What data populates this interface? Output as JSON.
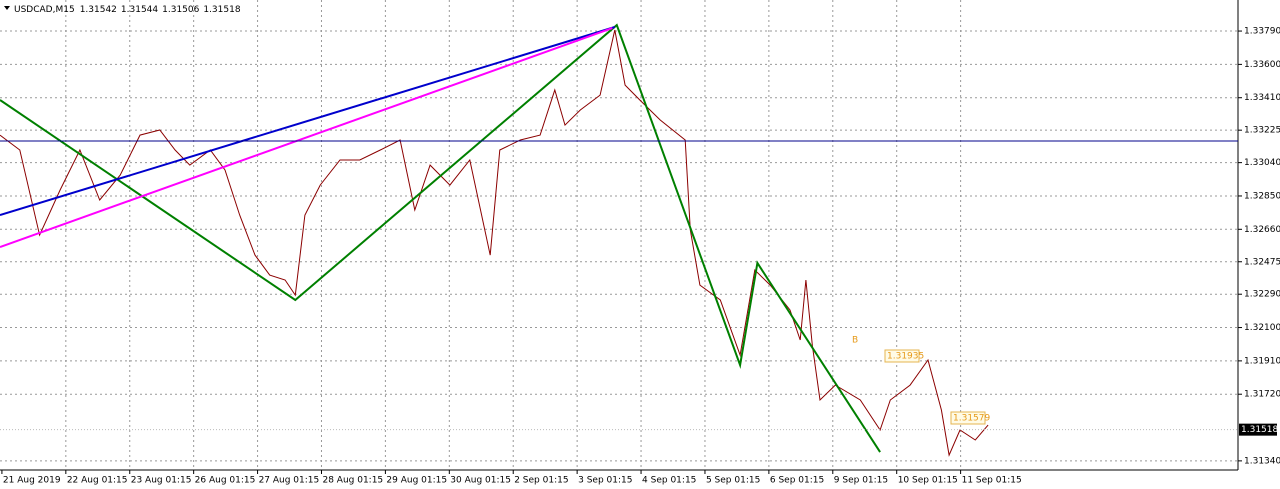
{
  "chart_data": {
    "type": "line",
    "title": "USDCAD,M15",
    "ohlc": [
      1.31542,
      1.31544,
      1.31506,
      1.31518
    ],
    "xlim": [
      -0.03,
      19.34
    ],
    "xticks": [
      {
        "value": 0,
        "label": "21 Aug 2019"
      },
      {
        "value": 1,
        "label": "22 Aug 01:15"
      },
      {
        "value": 2,
        "label": "23 Aug 01:15"
      },
      {
        "value": 3,
        "label": "26 Aug 01:15"
      },
      {
        "value": 4,
        "label": "27 Aug 01:15"
      },
      {
        "value": 5,
        "label": "28 Aug 01:15"
      },
      {
        "value": 6,
        "label": "29 Aug 01:15"
      },
      {
        "value": 7,
        "label": "30 Aug 01:15"
      },
      {
        "value": 8,
        "label": "2 Sep 01:15"
      },
      {
        "value": 9,
        "label": "3 Sep 01:15"
      },
      {
        "value": 10,
        "label": "4 Sep 01:15"
      },
      {
        "value": 11,
        "label": "5 Sep 01:15"
      },
      {
        "value": 12,
        "label": "6 Sep 01:15"
      },
      {
        "value": 13,
        "label": "9 Sep 01:15"
      },
      {
        "value": 14,
        "label": "10 Sep 01:15"
      },
      {
        "value": 15,
        "label": "11 Sep 01:15"
      }
    ],
    "ylim": [
      1.31288,
      1.33967
    ],
    "yticks": [
      {
        "value": 1.3379,
        "label": "1.33790"
      },
      {
        "value": 1.336,
        "label": "1.33600"
      },
      {
        "value": 1.3341,
        "label": "1.33410"
      },
      1.33225,
      {
        "value": 1.3304,
        "label": "1.33040"
      },
      {
        "value": 1.3285,
        "label": "1.32850"
      },
      {
        "value": 1.3266,
        "label": "1.32660"
      },
      1.32475,
      {
        "value": 1.3229,
        "label": "1.32290"
      },
      {
        "value": 1.321,
        "label": "1.32100"
      },
      {
        "value": 1.3191,
        "label": "1.31910"
      },
      {
        "value": 1.3172,
        "label": "1.31720"
      },
      {
        "value": 1.3134,
        "label": "1.31340"
      }
    ],
    "grid": true,
    "series": [
      {
        "color": "#8b0000",
        "x": [
          -0.03,
          0.28,
          0.59,
          0.91,
          1.22,
          1.53,
          1.85,
          2.16,
          2.47,
          2.71,
          2.94,
          3.26,
          3.49,
          3.72,
          3.96,
          4.19,
          4.43,
          4.59,
          4.74,
          4.98,
          5.29,
          5.6,
          5.92,
          6.23,
          6.46,
          6.7,
          7.01,
          7.32,
          7.64,
          7.79,
          8.11,
          8.42,
          8.65,
          8.81,
          9.05,
          9.36,
          9.59,
          9.75,
          9.98,
          10.3,
          10.69,
          10.77,
          10.92,
          11.24,
          11.55,
          11.78,
          12.02,
          12.33,
          12.49,
          12.58,
          12.68,
          12.8,
          13.04,
          13.43,
          13.74,
          13.9,
          14.21,
          14.49,
          14.7,
          14.82,
          14.99,
          15.23,
          15.43
        ],
        "values": [
          1.33197,
          1.33112,
          1.32627,
          1.32884,
          1.33112,
          1.32827,
          1.32969,
          1.33197,
          1.33226,
          1.33112,
          1.33026,
          1.33112,
          1.32998,
          1.32741,
          1.32513,
          1.32399,
          1.32371,
          1.32285,
          1.32741,
          1.32912,
          1.33055,
          1.33055,
          1.33112,
          1.33169,
          1.3277,
          1.33026,
          1.32912,
          1.33055,
          1.32513,
          1.33112,
          1.33169,
          1.33197,
          1.33454,
          1.33254,
          1.3334,
          1.33425,
          1.33796,
          1.33482,
          1.33397,
          1.33283,
          1.33169,
          1.32656,
          1.32342,
          1.32257,
          1.31943,
          1.32428,
          1.32342,
          1.322,
          1.32029,
          1.32371,
          1.32,
          1.31687,
          1.31772,
          1.31687,
          1.31516,
          1.31687,
          1.31772,
          1.31915,
          1.3163,
          1.31373,
          1.31516,
          1.31459,
          1.31544
        ]
      }
    ],
    "trendlines": [
      {
        "color": "#008000",
        "x": [
          -0.03,
          4.59,
          9.62,
          11.55,
          11.82,
          13.74
        ],
        "values": [
          1.33397,
          1.32257,
          1.33824,
          1.31886,
          1.32468,
          1.3139
        ]
      },
      {
        "color": "#0000cc",
        "x": [
          -0.03,
          9.59
        ],
        "values": [
          1.32741,
          1.33813
        ]
      },
      {
        "color": "#ff00ff",
        "x": [
          -0.03,
          9.55
        ],
        "values": [
          1.32559,
          1.33807
        ]
      }
    ],
    "hline": {
      "value": 1.33163,
      "color": "#00008b"
    },
    "annotations": [
      "B",
      "1.31935",
      "1.31579"
    ]
  }
}
